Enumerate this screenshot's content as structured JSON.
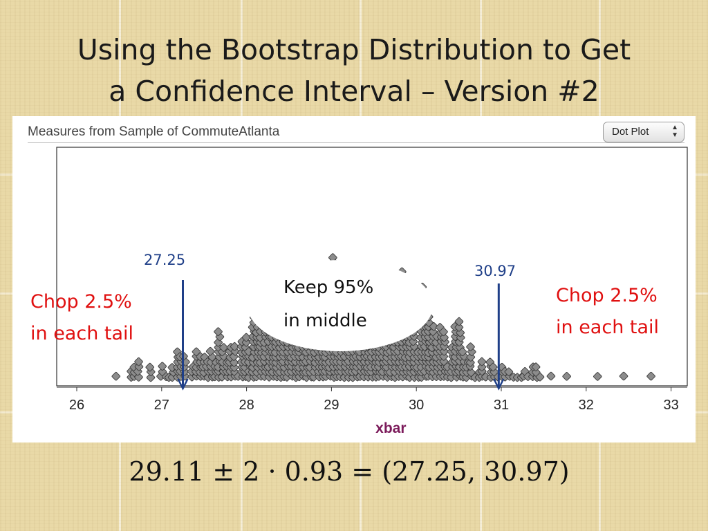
{
  "slide": {
    "title_line1": "Using the Bootstrap Distribution to Get",
    "title_line2": "a Confidence Interval – Version #2",
    "formula": "29.11 ± 2 · 0.93 = (27.25, 30.97)"
  },
  "panel": {
    "header": "Measures from Sample of CommuteAtlanta",
    "plot_type_select": "Dot Plot"
  },
  "annotations": {
    "lower_value": "27.25",
    "upper_value": "30.97",
    "left_chop_line1": "Chop 2.5%",
    "left_chop_line2": "in each tail",
    "right_chop_line1": "Chop 2.5%",
    "right_chop_line2": "in each tail",
    "keep_line1": "Keep 95%",
    "keep_line2": "in middle"
  },
  "colors": {
    "dot_fill": "#8c8c8c",
    "arrow": "#1f3f88",
    "chop_text": "#e01010",
    "xlabel": "#7b1a5a"
  },
  "chart_data": {
    "type": "scatter",
    "subtype": "dot plot",
    "title": "Measures from Sample of CommuteAtlanta",
    "xlabel": "xbar",
    "xlim": [
      25.8,
      33.15
    ],
    "xticks": [
      26,
      27,
      28,
      29,
      30,
      31,
      32,
      33
    ],
    "grid": false,
    "bootstrap_mean": 29.11,
    "bootstrap_se": 0.93,
    "interval": [
      27.25,
      30.97
    ],
    "approx_dot_count": 1000,
    "outlier_points": [
      26.45,
      31.78,
      32.15,
      32.45,
      32.75
    ]
  }
}
